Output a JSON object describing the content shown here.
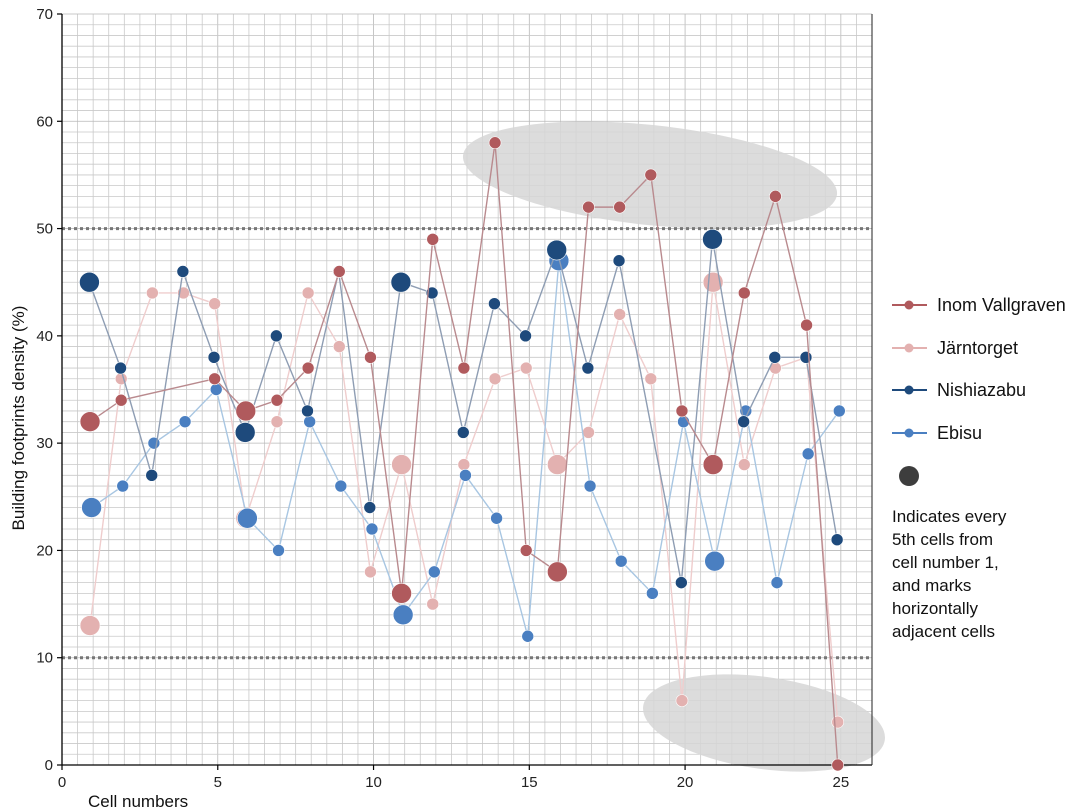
{
  "chart_data": {
    "type": "line",
    "title": "",
    "xlabel": "Cell numbers",
    "ylabel": "Building footprints density (%)",
    "xlim": [
      0,
      26
    ],
    "ylim": [
      0,
      70
    ],
    "x_ticks": [
      0,
      5,
      10,
      15,
      20,
      25
    ],
    "y_ticks": [
      0,
      10,
      20,
      30,
      40,
      50,
      60,
      70
    ],
    "grid": true,
    "threshold_lines": [
      10,
      50
    ],
    "x": [
      1,
      2,
      3,
      4,
      5,
      6,
      7,
      8,
      9,
      10,
      11,
      12,
      13,
      14,
      15,
      16,
      17,
      18,
      19,
      20,
      21,
      22,
      23,
      24,
      25
    ],
    "highlight_cells": [
      1,
      6,
      11,
      16,
      21
    ],
    "legend_position": "right",
    "series": [
      {
        "name": "Inom Vallgraven",
        "color": "#b05a5d",
        "line_color": "#b98a8e",
        "values": [
          32,
          34,
          null,
          null,
          36,
          33,
          34,
          37,
          46,
          38,
          16,
          49,
          37,
          58,
          20,
          18,
          52,
          52,
          55,
          33,
          28,
          44,
          53,
          41,
          0
        ]
      },
      {
        "name": "Järntorget",
        "color": "#e3b1b0",
        "line_color": "#efcdcd",
        "values": [
          13,
          36,
          44,
          44,
          43,
          23,
          32,
          44,
          39,
          18,
          28,
          15,
          28,
          36,
          37,
          28,
          31,
          42,
          36,
          6,
          45,
          28,
          37,
          38,
          4
        ]
      },
      {
        "name": "Nishiazabu",
        "color": "#1e4a7c",
        "line_color": "#8e9db3",
        "values": [
          45,
          37,
          27,
          46,
          38,
          31,
          40,
          33,
          46,
          24,
          45,
          44,
          31,
          43,
          40,
          48,
          37,
          47,
          null,
          17,
          49,
          32,
          38,
          38,
          21
        ]
      },
      {
        "name": "Ebisu",
        "color": "#4a7fc1",
        "line_color": "#a8c6e2",
        "values": [
          24,
          26,
          30,
          32,
          35,
          23,
          20,
          32,
          26,
          22,
          14,
          18,
          27,
          23,
          12,
          47,
          26,
          19,
          16,
          32,
          19,
          33,
          17,
          29,
          33
        ]
      }
    ],
    "note_marker_color": "#3d3d3d",
    "note_lines": [
      "Indicates every",
      "5th cells from",
      "cell number 1,",
      "and marks",
      "horizontally",
      "adjacent cells"
    ]
  }
}
